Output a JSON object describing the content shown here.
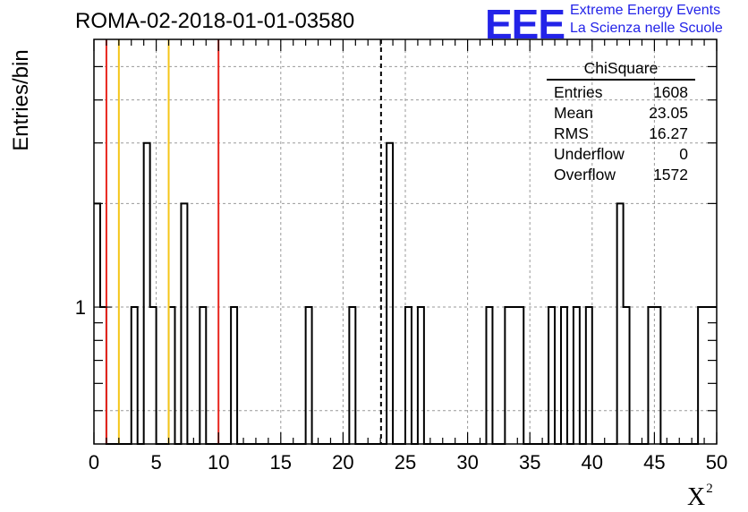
{
  "title": "ROMA-02-2018-01-01-03580",
  "logo": {
    "mark": "EEE",
    "line1": "Extreme Energy Events",
    "line2": "La Scienza nelle Scuole",
    "color": "#2323e8"
  },
  "stats_box": {
    "title": "ChiSquare",
    "rows": [
      {
        "label": "Entries",
        "value": "1608"
      },
      {
        "label": "Mean",
        "value": "23.05"
      },
      {
        "label": "RMS",
        "value": "16.27"
      },
      {
        "label": "Underflow",
        "value": "0"
      },
      {
        "label": "Overflow",
        "value": "1572"
      }
    ]
  },
  "chart_data": {
    "type": "histogram",
    "log_y": true,
    "xlim": [
      0,
      50
    ],
    "ylim": [
      0.4,
      6
    ],
    "bin_width": 0.5,
    "x_ticks": [
      0,
      5,
      10,
      15,
      20,
      25,
      30,
      35,
      40,
      45,
      50
    ],
    "x_tick_labels": [
      "0",
      "5",
      "10",
      "15",
      "20",
      "25",
      "30",
      "35",
      "40",
      "45",
      "50"
    ],
    "y_tick_labels": [
      "1"
    ],
    "xlabel": "X",
    "xlabel_superscript": "2",
    "ylabel": "Entries/bin",
    "grid": true,
    "bins": [
      {
        "x": 0.0,
        "y": 2
      },
      {
        "x": 0.5,
        "y": 1
      },
      {
        "x": 3.0,
        "y": 1
      },
      {
        "x": 4.0,
        "y": 3
      },
      {
        "x": 4.5,
        "y": 1
      },
      {
        "x": 6.0,
        "y": 1
      },
      {
        "x": 7.0,
        "y": 2
      },
      {
        "x": 8.5,
        "y": 1
      },
      {
        "x": 11.0,
        "y": 1
      },
      {
        "x": 17.0,
        "y": 1
      },
      {
        "x": 20.5,
        "y": 1
      },
      {
        "x": 23.5,
        "y": 3
      },
      {
        "x": 25.0,
        "y": 1
      },
      {
        "x": 26.0,
        "y": 1
      },
      {
        "x": 31.5,
        "y": 1
      },
      {
        "x": 33.0,
        "y": 1
      },
      {
        "x": 33.5,
        "y": 1
      },
      {
        "x": 34.0,
        "y": 1
      },
      {
        "x": 36.5,
        "y": 1
      },
      {
        "x": 37.5,
        "y": 1
      },
      {
        "x": 38.5,
        "y": 1
      },
      {
        "x": 39.5,
        "y": 1
      },
      {
        "x": 42.0,
        "y": 2
      },
      {
        "x": 42.5,
        "y": 1
      },
      {
        "x": 44.5,
        "y": 1
      },
      {
        "x": 45.0,
        "y": 1
      },
      {
        "x": 48.5,
        "y": 1
      },
      {
        "x": 49.0,
        "y": 1
      },
      {
        "x": 49.5,
        "y": 1
      }
    ],
    "reference_lines": [
      {
        "x": 1,
        "color": "#e8251d",
        "style": "solid"
      },
      {
        "x": 2,
        "color": "#f5c518",
        "style": "solid"
      },
      {
        "x": 6,
        "color": "#f5c518",
        "style": "solid"
      },
      {
        "x": 10,
        "color": "#e8251d",
        "style": "solid"
      },
      {
        "x": 23.05,
        "color": "#000000",
        "style": "dashed"
      }
    ]
  }
}
